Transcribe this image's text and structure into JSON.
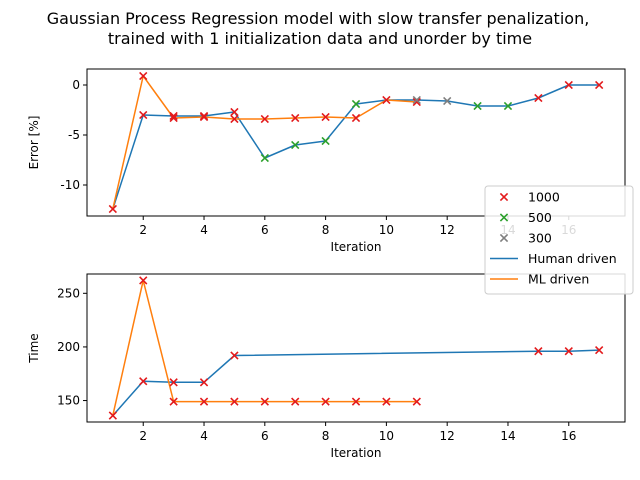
{
  "figure": {
    "title_lines": [
      "Gaussian Process Regression model with slow transfer  penalization,",
      "trained with 1 initialization data and unorder by time"
    ]
  },
  "colors": {
    "human": "#1f77b4",
    "ml": "#ff7f0e",
    "m1000": "#e31a1c",
    "m500": "#2ca02c",
    "m300": "#7f7f7f",
    "axis": "#000000"
  },
  "legend": {
    "placement": "center-right, straddling both panels",
    "items": [
      {
        "label": "1000",
        "kind": "marker",
        "color_key": "m1000"
      },
      {
        "label": "500",
        "kind": "marker",
        "color_key": "m500"
      },
      {
        "label": "300",
        "kind": "marker",
        "color_key": "m300"
      },
      {
        "label": "Human driven",
        "kind": "line",
        "color_key": "human"
      },
      {
        "label": "ML driven",
        "kind": "line",
        "color_key": "ml"
      }
    ]
  },
  "chart_data": [
    {
      "type": "line",
      "xlabel": "Iteration",
      "ylabel": "Error [%]",
      "xlim": [
        0.15,
        17.85
      ],
      "ylim": [
        -13.1,
        1.6
      ],
      "xticks": [
        2,
        4,
        6,
        8,
        10,
        12,
        14,
        16
      ],
      "yticks": [
        0,
        -5,
        -10
      ],
      "grid": false,
      "series": [
        {
          "name": "Human driven",
          "color_key": "human",
          "x": [
            1,
            2,
            3,
            4,
            5,
            6,
            7,
            8,
            9,
            10,
            11,
            12,
            13,
            14,
            15,
            16,
            17
          ],
          "y": [
            -12.4,
            -3.0,
            -3.1,
            -3.1,
            -2.7,
            -7.3,
            -6.0,
            -5.6,
            -1.9,
            -1.5,
            -1.5,
            -1.6,
            -2.1,
            -2.1,
            -1.3,
            0.0,
            0.0
          ]
        },
        {
          "name": "ML driven",
          "color_key": "ml",
          "x": [
            1,
            2,
            3,
            4,
            5,
            6,
            7,
            8,
            9,
            10,
            11
          ],
          "y": [
            -12.4,
            0.9,
            -3.3,
            -3.2,
            -3.4,
            -3.4,
            -3.3,
            -3.2,
            -3.3,
            -1.5,
            -1.7
          ]
        }
      ],
      "markers": [
        {
          "group": "1000",
          "color_key": "m1000",
          "points": [
            [
              1,
              -12.4
            ],
            [
              2,
              0.9
            ],
            [
              3,
              -3.3
            ],
            [
              4,
              -3.2
            ],
            [
              5,
              -3.4
            ],
            [
              6,
              -3.4
            ],
            [
              7,
              -3.3
            ],
            [
              8,
              -3.2
            ],
            [
              9,
              -3.3
            ],
            [
              10,
              -1.5
            ],
            [
              11,
              -1.7
            ],
            [
              2,
              -3.0
            ],
            [
              3,
              -3.1
            ],
            [
              4,
              -3.1
            ],
            [
              5,
              -2.7
            ],
            [
              15,
              -1.3
            ],
            [
              16,
              0.0
            ],
            [
              17,
              0.0
            ]
          ]
        },
        {
          "group": "500",
          "color_key": "m500",
          "points": [
            [
              6,
              -7.3
            ],
            [
              7,
              -6.0
            ],
            [
              8,
              -5.6
            ],
            [
              9,
              -1.9
            ],
            [
              13,
              -2.1
            ],
            [
              14,
              -2.1
            ]
          ]
        },
        {
          "group": "300",
          "color_key": "m300",
          "points": [
            [
              11,
              -1.5
            ],
            [
              12,
              -1.6
            ]
          ]
        }
      ]
    },
    {
      "type": "line",
      "xlabel": "Iteration",
      "ylabel": "Time",
      "xlim": [
        0.15,
        17.85
      ],
      "ylim": [
        130,
        268
      ],
      "xticks": [
        2,
        4,
        6,
        8,
        10,
        12,
        14,
        16
      ],
      "yticks": [
        150,
        200,
        250
      ],
      "grid": false,
      "series": [
        {
          "name": "Human driven",
          "color_key": "human",
          "x": [
            1,
            2,
            3,
            4,
            5,
            15,
            16,
            17
          ],
          "y": [
            136,
            168,
            167,
            167,
            192,
            196,
            196,
            197
          ]
        },
        {
          "name": "ML driven",
          "color_key": "ml",
          "x": [
            1,
            2,
            3,
            4,
            5,
            6,
            7,
            8,
            9,
            10,
            11
          ],
          "y": [
            136,
            262,
            149,
            149,
            149,
            149,
            149,
            149,
            149,
            149,
            149
          ]
        }
      ],
      "markers": [
        {
          "group": "1000",
          "color_key": "m1000",
          "points": [
            [
              1,
              136
            ],
            [
              2,
              262
            ],
            [
              3,
              149
            ],
            [
              4,
              149
            ],
            [
              5,
              149
            ],
            [
              6,
              149
            ],
            [
              7,
              149
            ],
            [
              8,
              149
            ],
            [
              9,
              149
            ],
            [
              10,
              149
            ],
            [
              11,
              149
            ],
            [
              2,
              168
            ],
            [
              3,
              167
            ],
            [
              4,
              167
            ],
            [
              5,
              192
            ],
            [
              15,
              196
            ],
            [
              16,
              196
            ],
            [
              17,
              197
            ]
          ]
        }
      ]
    }
  ]
}
